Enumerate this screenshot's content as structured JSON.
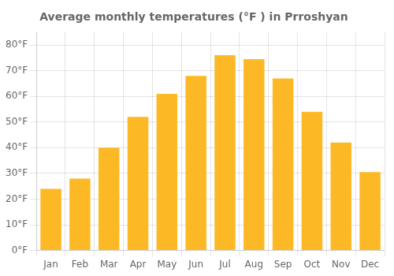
{
  "chart_data": {
    "type": "bar",
    "title": "Average monthly temperatures (°F ) in Prroshyan",
    "categories": [
      "Jan",
      "Feb",
      "Mar",
      "Apr",
      "May",
      "Jun",
      "Jul",
      "Aug",
      "Sep",
      "Oct",
      "Nov",
      "Dec"
    ],
    "values": [
      24,
      28,
      40,
      52,
      61,
      68,
      76,
      74.5,
      67,
      54,
      42,
      30.5
    ],
    "color": "#FDB825",
    "ylim": [
      0,
      85
    ],
    "yticks": [
      {
        "value": 0,
        "label": "0°F"
      },
      {
        "value": 10,
        "label": "10°F"
      },
      {
        "value": 20,
        "label": "20°F"
      },
      {
        "value": 30,
        "label": "30°F"
      },
      {
        "value": 40,
        "label": "40°F"
      },
      {
        "value": 50,
        "label": "50°F"
      },
      {
        "value": 60,
        "label": "60°F"
      },
      {
        "value": 70,
        "label": "70°F"
      },
      {
        "value": 80,
        "label": "80°F"
      }
    ],
    "grid": true
  }
}
